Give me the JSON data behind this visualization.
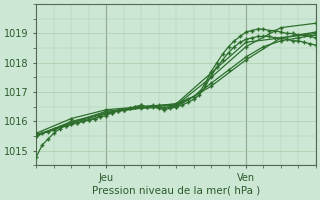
{
  "title": "",
  "xlabel": "Pression niveau de la mer( hPa )",
  "ylabel": "",
  "bg_color": "#cce8d4",
  "grid_color": "#aaccaa",
  "line_color": "#2d6e2d",
  "ylim": [
    1014.5,
    1019.85
  ],
  "xlim": [
    0,
    48
  ],
  "xtick_positions": [
    12,
    36
  ],
  "xtick_labels": [
    "Jeu",
    "Ven"
  ],
  "ytick_positions": [
    1015,
    1016,
    1017,
    1018,
    1019
  ],
  "ytick_labels": [
    "1015",
    "1016",
    "1017",
    "1018",
    "1019"
  ],
  "vline_positions": [
    12,
    36
  ],
  "line1_x": [
    0,
    1,
    2,
    3,
    4,
    5,
    6,
    7,
    8,
    9,
    10,
    11,
    12,
    13,
    14,
    15,
    16,
    17,
    18,
    19,
    20,
    21,
    22,
    23,
    24,
    25,
    26,
    27,
    28,
    29,
    30,
    31,
    32,
    33,
    34,
    35,
    36,
    37,
    38,
    39,
    40,
    41,
    42,
    43,
    44,
    45,
    46,
    47,
    48
  ],
  "line1_y": [
    1014.8,
    1015.2,
    1015.4,
    1015.6,
    1015.75,
    1015.85,
    1015.9,
    1015.95,
    1016.0,
    1016.05,
    1016.1,
    1016.2,
    1016.25,
    1016.3,
    1016.35,
    1016.4,
    1016.45,
    1016.5,
    1016.55,
    1016.5,
    1016.5,
    1016.45,
    1016.4,
    1016.45,
    1016.5,
    1016.55,
    1016.65,
    1016.75,
    1016.9,
    1017.2,
    1017.55,
    1017.85,
    1018.1,
    1018.35,
    1018.55,
    1018.7,
    1018.8,
    1018.85,
    1018.9,
    1018.9,
    1018.9,
    1018.85,
    1018.85,
    1018.8,
    1018.75,
    1018.75,
    1018.7,
    1018.65,
    1018.6
  ],
  "line2_x": [
    0,
    3,
    6,
    9,
    12,
    15,
    18,
    21,
    24,
    27,
    30,
    33,
    36,
    39,
    42,
    45,
    48
  ],
  "line2_y": [
    1015.5,
    1015.75,
    1015.95,
    1016.1,
    1016.3,
    1016.4,
    1016.5,
    1016.55,
    1016.6,
    1016.85,
    1017.3,
    1017.75,
    1018.2,
    1018.55,
    1018.75,
    1018.85,
    1018.95
  ],
  "line3_x": [
    0,
    6,
    12,
    18,
    24,
    30,
    36,
    42,
    48
  ],
  "line3_y": [
    1015.6,
    1016.1,
    1016.4,
    1016.5,
    1016.55,
    1017.5,
    1018.55,
    1019.2,
    1019.35
  ],
  "line4_x": [
    0,
    6,
    12,
    18,
    24,
    30,
    36,
    42,
    48
  ],
  "line4_y": [
    1015.5,
    1016.0,
    1016.3,
    1016.45,
    1016.5,
    1017.2,
    1018.1,
    1018.85,
    1019.05
  ],
  "line5_x": [
    0,
    12,
    24,
    36,
    48
  ],
  "line5_y": [
    1015.55,
    1016.35,
    1016.6,
    1018.7,
    1019.0
  ],
  "line6_x": [
    0,
    1,
    2,
    3,
    4,
    5,
    6,
    7,
    8,
    9,
    10,
    11,
    12,
    13,
    14,
    15,
    16,
    17,
    18,
    19,
    20,
    21,
    22,
    23,
    24,
    25,
    26,
    27,
    28,
    29,
    30,
    31,
    32,
    33,
    34,
    35,
    36,
    37,
    38,
    39,
    40,
    41,
    42,
    43,
    44,
    45,
    46,
    47,
    48
  ],
  "line6_y": [
    1015.5,
    1015.6,
    1015.65,
    1015.7,
    1015.8,
    1015.85,
    1015.9,
    1015.95,
    1016.0,
    1016.05,
    1016.1,
    1016.15,
    1016.2,
    1016.3,
    1016.35,
    1016.4,
    1016.45,
    1016.5,
    1016.55,
    1016.5,
    1016.55,
    1016.5,
    1016.45,
    1016.5,
    1016.55,
    1016.65,
    1016.75,
    1016.85,
    1017.0,
    1017.3,
    1017.7,
    1018.0,
    1018.3,
    1018.55,
    1018.75,
    1018.9,
    1019.05,
    1019.1,
    1019.15,
    1019.15,
    1019.1,
    1019.1,
    1019.05,
    1019.0,
    1019.0,
    1018.95,
    1018.95,
    1018.9,
    1018.85
  ]
}
